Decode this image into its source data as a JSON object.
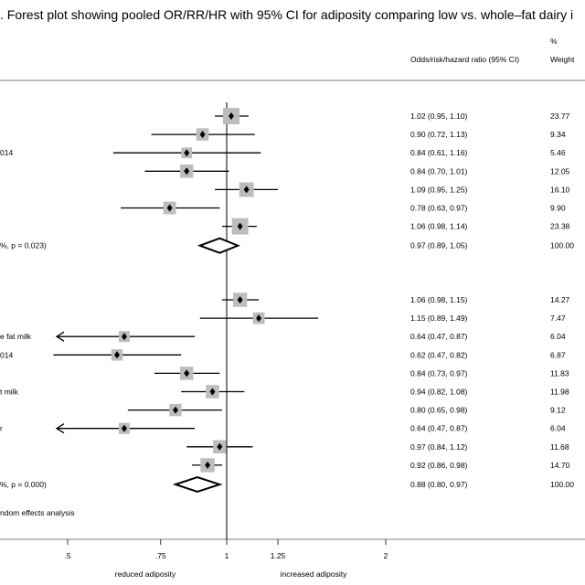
{
  "chart_data": {
    "type": "forest",
    "title": ". Forest plot showing pooled OR/RR/HR with 95% CI for adiposity comparing low vs. whole–fat dairy i",
    "column_headers": {
      "effect": "Odds/risk/hazard ratio (95% CI)",
      "weight_top": "%",
      "weight": "Weight"
    },
    "x_axis": {
      "ticks": [
        ".5",
        ".75",
        "1",
        "1.25",
        "2"
      ],
      "tick_values": [
        0.5,
        0.75,
        1,
        1.25,
        2
      ],
      "scale": "log",
      "reference_line": 1,
      "left_label": "reduced adiposity",
      "right_label": "increased adiposity"
    },
    "groups": [
      {
        "rows": [
          {
            "label": "",
            "est": 1.02,
            "lo": 0.95,
            "hi": 1.1,
            "ci_text": "1.02 (0.95, 1.10)",
            "weight": "23.77"
          },
          {
            "label": "",
            "est": 0.9,
            "lo": 0.72,
            "hi": 1.13,
            "ci_text": "0.90 (0.72, 1.13)",
            "weight": "9.34"
          },
          {
            "label": "014",
            "est": 0.84,
            "lo": 0.61,
            "hi": 1.16,
            "ci_text": "0.84 (0.61, 1.16)",
            "weight": "5.46"
          },
          {
            "label": "",
            "est": 0.84,
            "lo": 0.7,
            "hi": 1.01,
            "ci_text": "0.84 (0.70, 1.01)",
            "weight": "12.05"
          },
          {
            "label": "",
            "est": 1.09,
            "lo": 0.95,
            "hi": 1.25,
            "ci_text": "1.09 (0.95, 1.25)",
            "weight": "16.10"
          },
          {
            "label": "",
            "est": 0.78,
            "lo": 0.63,
            "hi": 0.97,
            "ci_text": "0.78 (0.63, 0.97)",
            "weight": "9.90"
          },
          {
            "label": "",
            "est": 1.06,
            "lo": 0.98,
            "hi": 1.14,
            "ci_text": "1.06 (0.98, 1.14)",
            "weight": "23.38"
          }
        ],
        "pooled": {
          "label": "%, p = 0.023)",
          "est": 0.97,
          "lo": 0.89,
          "hi": 1.05,
          "ci_text": "0.97 (0.89, 1.05)",
          "weight": "100.00"
        }
      },
      {
        "rows": [
          {
            "label": "",
            "est": 1.06,
            "lo": 0.98,
            "hi": 1.15,
            "ci_text": "1.06 (0.98, 1.15)",
            "weight": "14.27"
          },
          {
            "label": "",
            "est": 1.15,
            "lo": 0.89,
            "hi": 1.49,
            "ci_text": "1.15 (0.89, 1.49)",
            "weight": "7.47"
          },
          {
            "label": "e fat milk",
            "est": 0.64,
            "lo": 0.47,
            "hi": 0.87,
            "ci_text": "0.64 (0.47, 0.87)",
            "weight": "6.04",
            "arrow_left": true
          },
          {
            "label": "014",
            "est": 0.62,
            "lo": 0.47,
            "hi": 0.82,
            "ci_text": "0.62 (0.47, 0.82)",
            "weight": "6.87"
          },
          {
            "label": "",
            "est": 0.84,
            "lo": 0.73,
            "hi": 0.97,
            "ci_text": "0.84 (0.73, 0.97)",
            "weight": "11.83"
          },
          {
            "label": "t milk",
            "est": 0.94,
            "lo": 0.82,
            "hi": 1.08,
            "ci_text": "0.94 (0.82, 1.08)",
            "weight": "11.98"
          },
          {
            "label": "",
            "est": 0.8,
            "lo": 0.65,
            "hi": 0.98,
            "ci_text": "0.80 (0.65, 0.98)",
            "weight": "9.12"
          },
          {
            "label": "r",
            "est": 0.64,
            "lo": 0.47,
            "hi": 0.87,
            "ci_text": "0.64 (0.47, 0.87)",
            "weight": "6.04",
            "arrow_left": true
          },
          {
            "label": "",
            "est": 0.97,
            "lo": 0.84,
            "hi": 1.12,
            "ci_text": "0.97 (0.84, 1.12)",
            "weight": "11.68"
          },
          {
            "label": "",
            "est": 0.92,
            "lo": 0.86,
            "hi": 0.98,
            "ci_text": "0.92 (0.86, 0.98)",
            "weight": "14.70"
          }
        ],
        "pooled": {
          "label": "%, p = 0.000)",
          "est": 0.88,
          "lo": 0.8,
          "hi": 0.97,
          "ci_text": "0.88 (0.80, 0.97)",
          "weight": "100.00"
        }
      }
    ],
    "footnote": "ndom effects analysis",
    "colors": {
      "title": "#3a4a7a",
      "box": "#bdbdbd",
      "ink": "#000000"
    }
  }
}
